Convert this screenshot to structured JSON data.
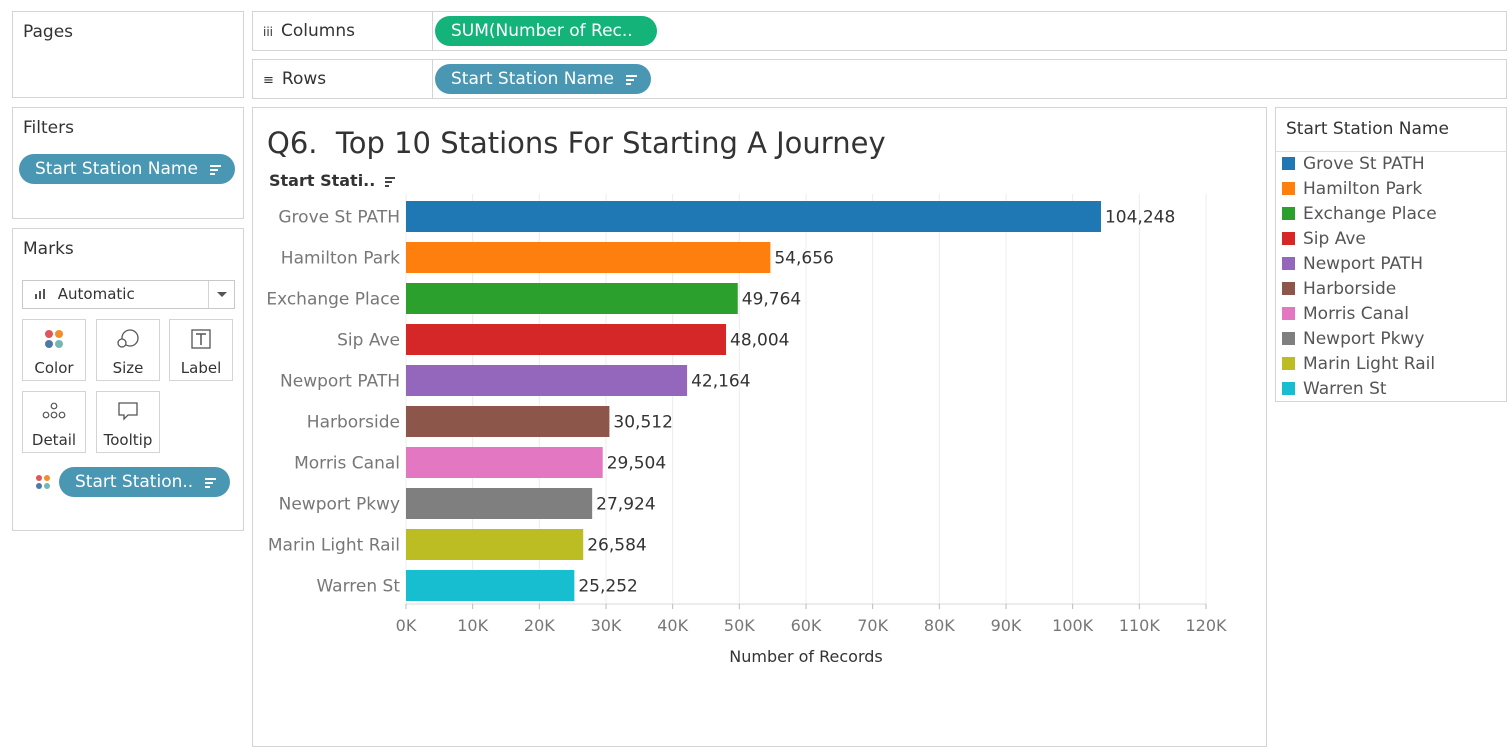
{
  "shelves": {
    "pages_label": "Pages",
    "columns_label": "Columns",
    "columns_pill": "SUM(Number of Rec..",
    "rows_label": "Rows",
    "rows_pill": "Start Station Name"
  },
  "filters": {
    "title": "Filters",
    "pill": "Start Station Name"
  },
  "marks": {
    "title": "Marks",
    "mark_type": "Automatic",
    "buttons": {
      "color": "Color",
      "size": "Size",
      "label": "Label",
      "detail": "Detail",
      "tooltip": "Tooltip"
    },
    "color_pill": "Start Station.."
  },
  "legend": {
    "title": "Start Station Name",
    "items": [
      {
        "label": "Grove St PATH",
        "color": "#1f77b4"
      },
      {
        "label": "Hamilton Park",
        "color": "#ff7f0e"
      },
      {
        "label": "Exchange Place",
        "color": "#2ca02c"
      },
      {
        "label": "Sip Ave",
        "color": "#d62728"
      },
      {
        "label": "Newport PATH",
        "color": "#9467bd"
      },
      {
        "label": "Harborside",
        "color": "#8c564b"
      },
      {
        "label": "Morris Canal",
        "color": "#e377c2"
      },
      {
        "label": "Newport Pkwy",
        "color": "#7f7f7f"
      },
      {
        "label": "Marin Light Rail",
        "color": "#bcbd22"
      },
      {
        "label": "Warren St",
        "color": "#17becf"
      }
    ]
  },
  "chart_data": {
    "type": "bar",
    "orientation": "horizontal",
    "title": "Q6.  Top 10 Stations For Starting A Journey",
    "row_header": "Start Stati..",
    "xlabel": "Number of Records",
    "categories": [
      "Grove St PATH",
      "Hamilton Park",
      "Exchange Place",
      "Sip Ave",
      "Newport PATH",
      "Harborside",
      "Morris Canal",
      "Newport Pkwy",
      "Marin Light Rail",
      "Warren St"
    ],
    "values": [
      104248,
      54656,
      49764,
      48004,
      42164,
      30512,
      29504,
      27924,
      26584,
      25252
    ],
    "value_labels": [
      "104,248",
      "54,656",
      "49,764",
      "48,004",
      "42,164",
      "30,512",
      "29,504",
      "27,924",
      "26,584",
      "25,252"
    ],
    "colors": [
      "#1f77b4",
      "#ff7f0e",
      "#2ca02c",
      "#d62728",
      "#9467bd",
      "#8c564b",
      "#e377c2",
      "#7f7f7f",
      "#bcbd22",
      "#17becf"
    ],
    "xticks": [
      0,
      10000,
      20000,
      30000,
      40000,
      50000,
      60000,
      70000,
      80000,
      90000,
      100000,
      110000,
      120000
    ],
    "xtick_labels": [
      "0K",
      "10K",
      "20K",
      "30K",
      "40K",
      "50K",
      "60K",
      "70K",
      "80K",
      "90K",
      "100K",
      "110K",
      "120K"
    ],
    "xlim": [
      0,
      120000
    ],
    "grid": true
  }
}
